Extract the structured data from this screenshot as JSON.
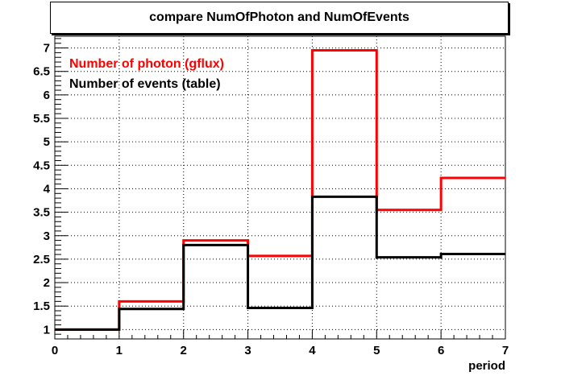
{
  "chart_data": {
    "type": "line",
    "title": "compare NumOfPhoton and NumOfEvents",
    "xlabel": "period",
    "ylabel": "",
    "xlim": [
      0,
      7
    ],
    "ylim": [
      0.8,
      7.25
    ],
    "xticks": [
      "0",
      "1",
      "2",
      "3",
      "4",
      "5",
      "6",
      "7"
    ],
    "yticks": [
      "1",
      "1.5",
      "2",
      "2.5",
      "3",
      "3.5",
      "4",
      "4.5",
      "5",
      "5.5",
      "6",
      "6.5",
      "7"
    ],
    "grid": true,
    "legend_position": "top-left",
    "bin_edges": [
      0,
      1,
      2,
      3,
      4,
      5,
      6,
      7
    ],
    "series": [
      {
        "name": "Number of photon (gflux)",
        "color": "#ff0000",
        "values": [
          1.0,
          1.6,
          2.9,
          2.57,
          6.95,
          3.55,
          4.23
        ]
      },
      {
        "name": "Number of events (table)",
        "color": "#000000",
        "values": [
          1.0,
          1.44,
          2.8,
          1.46,
          3.83,
          2.54,
          2.61
        ]
      }
    ]
  }
}
